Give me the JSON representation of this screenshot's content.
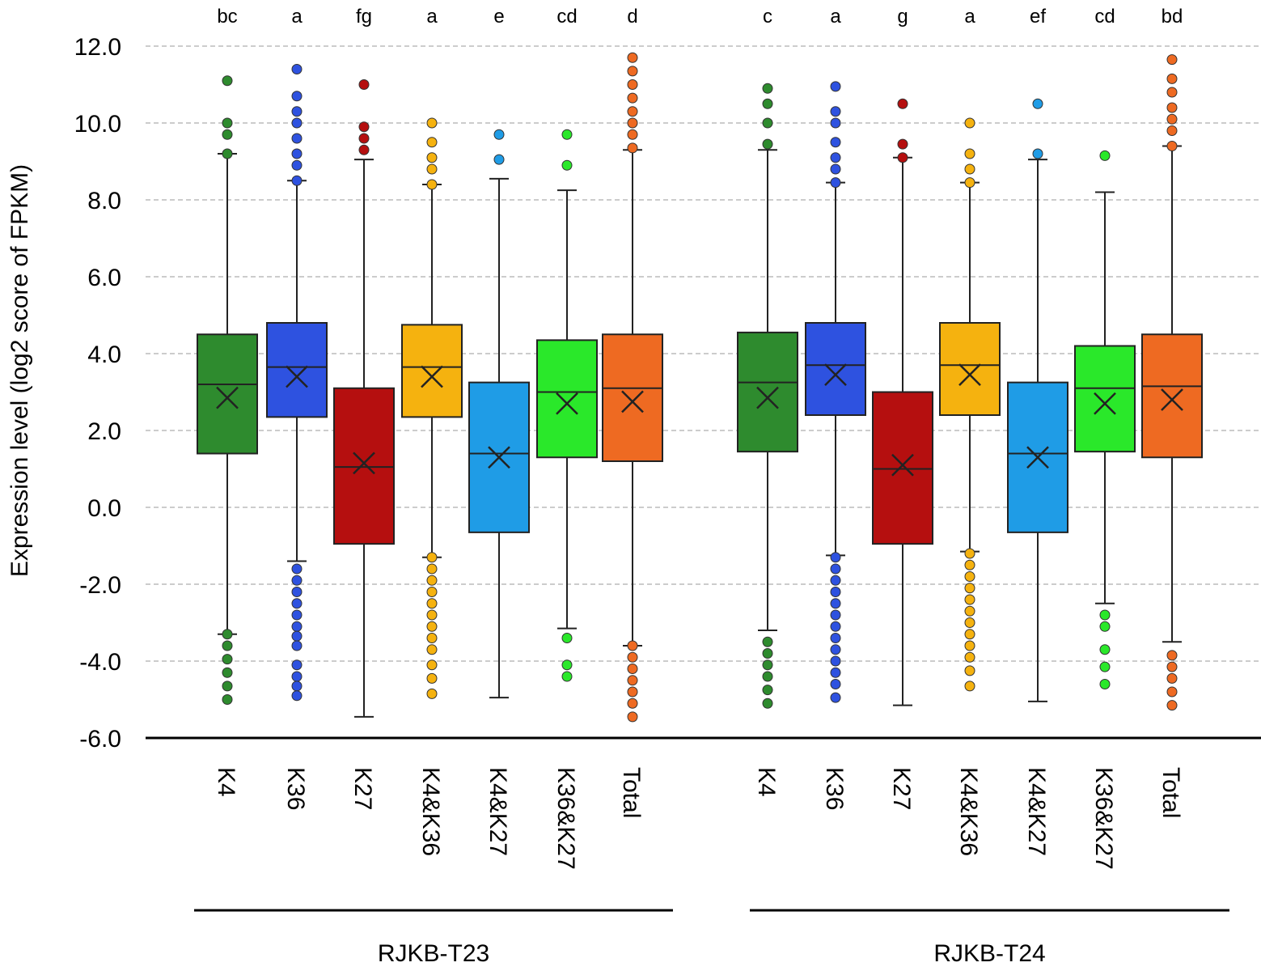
{
  "chart_data": {
    "type": "box",
    "ylabel": "Expression level (log2 score of FPKM)",
    "ylim": [
      -6.0,
      12.0
    ],
    "yticks": [
      "12.0",
      "10.0",
      "8.0",
      "6.0",
      "4.0",
      "2.0",
      "0.0",
      "-2.0",
      "-4.0",
      "-6.0"
    ],
    "ytick_values": [
      12,
      10,
      8,
      6,
      4,
      2,
      0,
      -2,
      -4,
      -6
    ],
    "grid": true,
    "groups": [
      {
        "name": "RJKB-T23",
        "boxes": [
          {
            "label": "K4",
            "sig": "bc",
            "color": "#2e8b2e",
            "q1": 1.4,
            "median": 3.2,
            "q3": 4.5,
            "mean": 2.85,
            "whisker_low": -3.3,
            "whisker_high": 9.2,
            "outliers": [
              11.1,
              10.0,
              9.7,
              9.2,
              -3.3,
              -3.6,
              -3.95,
              -4.3,
              -4.65,
              -5.0
            ]
          },
          {
            "label": "K36",
            "sig": "a",
            "color": "#2e52e0",
            "q1": 2.35,
            "median": 3.65,
            "q3": 4.8,
            "mean": 3.4,
            "whisker_low": -1.4,
            "whisker_high": 8.5,
            "outliers": [
              11.4,
              10.7,
              10.3,
              10.0,
              9.6,
              9.2,
              8.9,
              8.5,
              -1.6,
              -1.9,
              -2.2,
              -2.5,
              -2.8,
              -3.1,
              -3.35,
              -3.6,
              -4.1,
              -4.4,
              -4.65,
              -4.9
            ]
          },
          {
            "label": "K27",
            "sig": "fg",
            "color": "#b50f0f",
            "q1": -0.95,
            "median": 1.05,
            "q3": 3.1,
            "mean": 1.15,
            "whisker_low": -5.45,
            "whisker_high": 9.05,
            "outliers": [
              11.0,
              9.9,
              9.6,
              9.3
            ]
          },
          {
            "label": "K4&K36",
            "sig": "a",
            "color": "#f5b20f",
            "q1": 2.35,
            "median": 3.65,
            "q3": 4.75,
            "mean": 3.4,
            "whisker_low": -1.3,
            "whisker_high": 8.4,
            "outliers": [
              10.0,
              9.5,
              9.1,
              8.8,
              8.4,
              -1.3,
              -1.6,
              -1.9,
              -2.2,
              -2.5,
              -2.8,
              -3.1,
              -3.4,
              -3.7,
              -4.1,
              -4.45,
              -4.85
            ]
          },
          {
            "label": "K4&K27",
            "sig": "e",
            "color": "#1f9ce6",
            "q1": -0.65,
            "median": 1.4,
            "q3": 3.25,
            "mean": 1.3,
            "whisker_low": -4.95,
            "whisker_high": 8.55,
            "outliers": [
              9.7,
              9.05
            ]
          },
          {
            "label": "K36&K27",
            "sig": "cd",
            "color": "#2ae82a",
            "q1": 1.3,
            "median": 3.0,
            "q3": 4.35,
            "mean": 2.7,
            "whisker_low": -3.15,
            "whisker_high": 8.25,
            "outliers": [
              9.7,
              8.9,
              -3.4,
              -4.1,
              -4.4
            ]
          },
          {
            "label": "Total",
            "sig": "d",
            "color": "#ee6a22",
            "q1": 1.2,
            "median": 3.1,
            "q3": 4.5,
            "mean": 2.75,
            "whisker_low": -3.6,
            "whisker_high": 9.3,
            "outliers": [
              11.7,
              11.35,
              11.0,
              10.65,
              10.3,
              10.0,
              9.7,
              9.35,
              -3.6,
              -3.9,
              -4.2,
              -4.5,
              -4.8,
              -5.1,
              -5.45
            ]
          }
        ]
      },
      {
        "name": "RJKB-T24",
        "boxes": [
          {
            "label": "K4",
            "sig": "c",
            "color": "#2e8b2e",
            "q1": 1.45,
            "median": 3.25,
            "q3": 4.55,
            "mean": 2.85,
            "whisker_low": -3.2,
            "whisker_high": 9.3,
            "outliers": [
              10.9,
              10.5,
              10.0,
              9.45,
              -3.5,
              -3.8,
              -4.1,
              -4.4,
              -4.75,
              -5.1
            ]
          },
          {
            "label": "K36",
            "sig": "a",
            "color": "#2e52e0",
            "q1": 2.4,
            "median": 3.7,
            "q3": 4.8,
            "mean": 3.45,
            "whisker_low": -1.25,
            "whisker_high": 8.45,
            "outliers": [
              10.95,
              10.3,
              10.0,
              9.5,
              9.1,
              8.8,
              8.45,
              -1.3,
              -1.6,
              -1.9,
              -2.2,
              -2.5,
              -2.8,
              -3.1,
              -3.4,
              -3.7,
              -4.0,
              -4.3,
              -4.6,
              -4.95
            ]
          },
          {
            "label": "K27",
            "sig": "g",
            "color": "#b50f0f",
            "q1": -0.95,
            "median": 1.0,
            "q3": 3.0,
            "mean": 1.1,
            "whisker_low": -5.15,
            "whisker_high": 9.1,
            "outliers": [
              10.5,
              9.45,
              9.1
            ]
          },
          {
            "label": "K4&K36",
            "sig": "a",
            "color": "#f5b20f",
            "q1": 2.4,
            "median": 3.7,
            "q3": 4.8,
            "mean": 3.45,
            "whisker_low": -1.15,
            "whisker_high": 8.45,
            "outliers": [
              10.0,
              9.2,
              8.8,
              8.45,
              -1.2,
              -1.5,
              -1.8,
              -2.1,
              -2.4,
              -2.7,
              -3.0,
              -3.3,
              -3.6,
              -3.9,
              -4.25,
              -4.65
            ]
          },
          {
            "label": "K4&K27",
            "sig": "ef",
            "color": "#1f9ce6",
            "q1": -0.65,
            "median": 1.4,
            "q3": 3.25,
            "mean": 1.3,
            "whisker_low": -5.05,
            "whisker_high": 9.05,
            "outliers": [
              10.5,
              9.2
            ]
          },
          {
            "label": "K36&K27",
            "sig": "cd",
            "color": "#2ae82a",
            "q1": 1.45,
            "median": 3.1,
            "q3": 4.2,
            "mean": 2.7,
            "whisker_low": -2.5,
            "whisker_high": 8.2,
            "outliers": [
              9.15,
              -2.8,
              -3.1,
              -3.7,
              -4.15,
              -4.6
            ]
          },
          {
            "label": "Total",
            "sig": "bd",
            "color": "#ee6a22",
            "q1": 1.3,
            "median": 3.15,
            "q3": 4.5,
            "mean": 2.8,
            "whisker_low": -3.5,
            "whisker_high": 9.4,
            "outliers": [
              11.65,
              11.15,
              10.8,
              10.4,
              10.1,
              9.8,
              9.4,
              -3.85,
              -4.15,
              -4.45,
              -4.8,
              -5.15
            ]
          }
        ]
      }
    ]
  }
}
